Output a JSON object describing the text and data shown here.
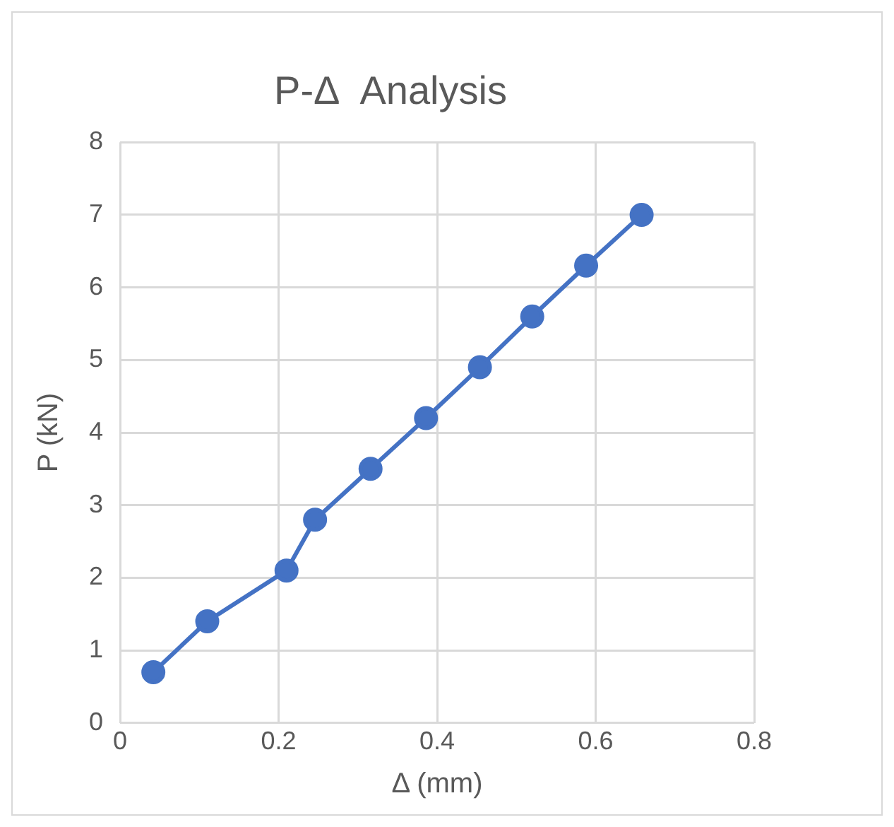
{
  "chart_data": {
    "type": "line",
    "title": "P-Δ  Analysis",
    "xlabel": "Δ (mm)",
    "ylabel": "P (kN)",
    "x": [
      0.042,
      0.11,
      0.21,
      0.246,
      0.316,
      0.386,
      0.454,
      0.52,
      0.588,
      0.658
    ],
    "series": [
      {
        "color": "#4472c4",
        "values": [
          0.7,
          1.4,
          2.1,
          2.8,
          3.5,
          4.2,
          4.9,
          5.6,
          6.3,
          7.0
        ]
      }
    ],
    "xlim": [
      0,
      0.8
    ],
    "xticks": [
      0,
      0.2,
      0.4,
      0.6,
      0.8
    ],
    "ylim": [
      0,
      8
    ],
    "yticks": [
      0,
      1,
      2,
      3,
      4,
      5,
      6,
      7,
      8
    ],
    "grid": true,
    "legend": false,
    "marker": "circle",
    "line_style": "solid"
  }
}
